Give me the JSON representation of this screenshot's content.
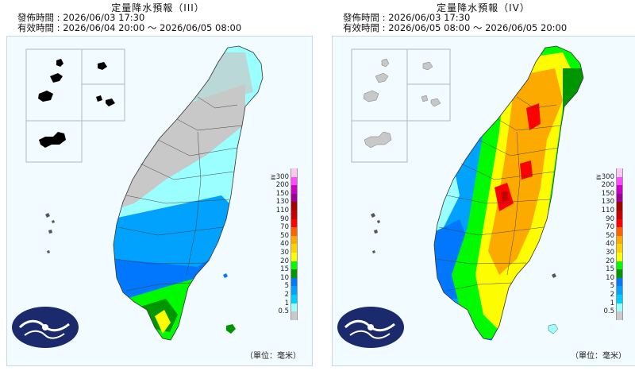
{
  "panels": [
    {
      "title": "定量降水預報（III）",
      "issued_label": "發佈時間",
      "issued_value": "2026/06/03 17:30",
      "valid_label": "有效時間",
      "valid_value": "2026/06/04 20:00 ～ 2026/06/05 08:00",
      "unit": "（單位：毫米）"
    },
    {
      "title": "定量降水預報（IV）",
      "issued_label": "發佈時間",
      "issued_value": "2026/06/03 17:30",
      "valid_label": "有效時間",
      "valid_value": "2026/06/05 08:00 ～ 2026/06/05 20:00",
      "unit": "（單位：毫米）"
    }
  ],
  "legend": {
    "top_symbol": "≧",
    "levels": [
      "300",
      "200",
      "150",
      "130",
      "110",
      "90",
      "70",
      "50",
      "40",
      "30",
      "20",
      "15",
      "10",
      "5",
      "2",
      "1",
      "0.5"
    ],
    "colors": [
      "#fdc9f2",
      "#fe4bfe",
      "#cb00c9",
      "#9a0098",
      "#a30000",
      "#c80000",
      "#fd0000",
      "#fe6200",
      "#fdaa00",
      "#fbd300",
      "#fdfc00",
      "#00fa00",
      "#009600",
      "#0077fd",
      "#00a2fe",
      "#00cefe",
      "#9bffff",
      "#cacaca"
    ]
  },
  "colors": {
    "land_dry": "#c8c8c8",
    "light_blue": "#9bffff",
    "mid_blue": "#00a2fe",
    "blue": "#0077fd",
    "green": "#00fa00",
    "dark_green": "#009600",
    "yellow": "#fdfc00",
    "orange": "#fdaa00",
    "red": "#fd0000",
    "sea": "#f2fbff",
    "logo": "#1a2a6c"
  }
}
